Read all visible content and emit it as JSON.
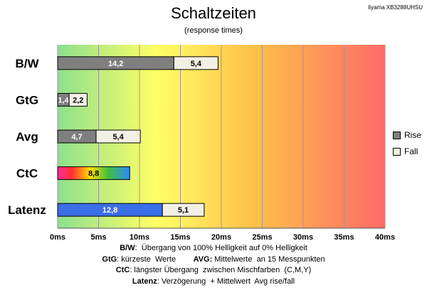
{
  "chart_data": {
    "type": "bar",
    "orientation": "horizontal",
    "stacked": true,
    "title": "Schaltzeiten",
    "subtitle": "(response times)",
    "model": "Iiyama XB3288UHSU",
    "categories": [
      "B/W",
      "GtG",
      "Avg",
      "CtC",
      "Latenz"
    ],
    "series": [
      {
        "name": "Rise",
        "values": [
          14.2,
          1.4,
          4.7,
          8.8,
          12.8
        ],
        "labels": [
          "14,2",
          "1,4",
          "4,7",
          "8,8",
          "12,8"
        ]
      },
      {
        "name": "Fall",
        "values": [
          5.4,
          2.2,
          5.4,
          null,
          5.1
        ],
        "labels": [
          "5,4",
          "2,2",
          "5,4",
          "",
          "5,1"
        ]
      }
    ],
    "ticks": [
      "0ms",
      "5ms",
      "10ms",
      "15ms",
      "20ms",
      "25ms",
      "30ms",
      "35ms",
      "40ms"
    ],
    "xlim": [
      0,
      40
    ],
    "grid": true,
    "legend_position": "right",
    "colors": {
      "rise": "#7f7f7f",
      "fall": "#f2f0e4",
      "latenz_rise": "#3a6fe8",
      "background_gradient": [
        "#8ee08e",
        "#ffff66",
        "#ffc04a",
        "#ff6a6a"
      ]
    }
  },
  "notes": [
    {
      "parts": [
        {
          "b": true,
          "t": "B/W"
        },
        {
          "t": ":  Übergang von 100% Helligkeit auf 0% Helligkeit"
        }
      ]
    },
    {
      "parts": [
        {
          "b": true,
          "t": "GtG"
        },
        {
          "t": ": kürzeste  Werte        "
        },
        {
          "b": true,
          "t": "AVG:"
        },
        {
          "t": " Mittelwerte  an 15 Messpunkten"
        }
      ]
    },
    {
      "parts": [
        {
          "b": true,
          "t": "CtC"
        },
        {
          "t": ": längster Übergang  zwischen Mischfarben  (C,M,Y)"
        }
      ]
    },
    {
      "parts": [
        {
          "b": true,
          "t": "Latenz"
        },
        {
          "t": ": Verzögerung  + Mittelwert  Avg rise/fall"
        }
      ]
    }
  ]
}
